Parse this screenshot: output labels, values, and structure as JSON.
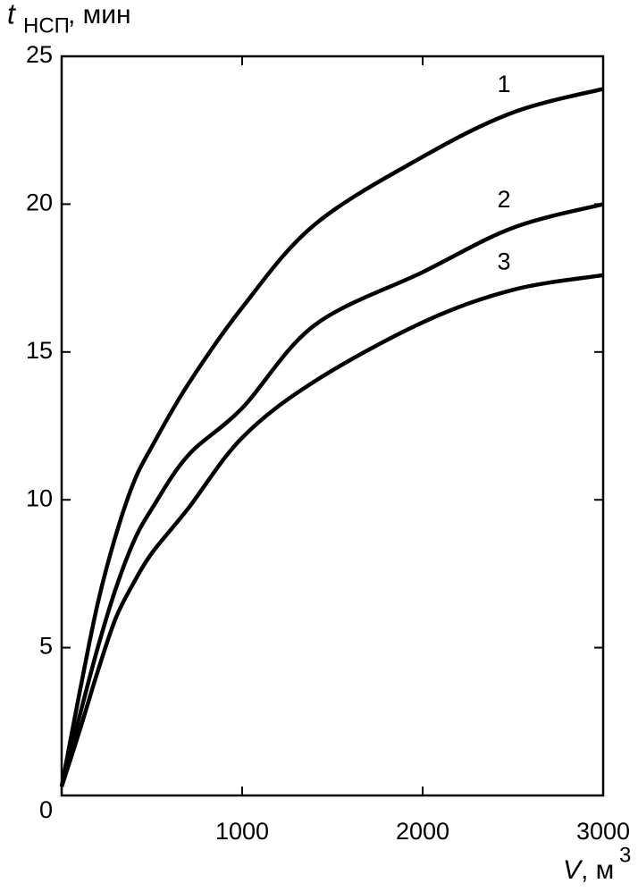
{
  "chart_data": {
    "type": "line",
    "y_label": {
      "symbol": "t",
      "subscript": "НСП",
      "unit": ", мин"
    },
    "x_label": {
      "symbol": "V",
      "unit": ", м",
      "superscript": "3"
    },
    "x": [
      0,
      100,
      200,
      300,
      400,
      500,
      700,
      1000,
      1400,
      2000,
      2500,
      3000
    ],
    "series": [
      {
        "name": "1",
        "color": "#000000",
        "values": [
          0.3,
          3.5,
          6.5,
          8.8,
          10.6,
          11.8,
          13.9,
          16.5,
          19.3,
          21.6,
          23.1,
          23.9
        ]
      },
      {
        "name": "2",
        "color": "#000000",
        "values": [
          0.3,
          2.7,
          5.0,
          7.0,
          8.6,
          9.7,
          11.5,
          13.1,
          15.9,
          17.7,
          19.2,
          20.0
        ]
      },
      {
        "name": "3",
        "color": "#000000",
        "values": [
          0.3,
          2.2,
          4.2,
          6.0,
          7.2,
          8.2,
          9.7,
          12.1,
          14.0,
          16.0,
          17.1,
          17.6
        ]
      }
    ],
    "xlim": [
      0,
      3000
    ],
    "ylim": [
      0,
      25
    ],
    "xticks": [
      1000,
      2000,
      3000
    ],
    "yticks": [
      0,
      5,
      10,
      15,
      20,
      25
    ]
  }
}
